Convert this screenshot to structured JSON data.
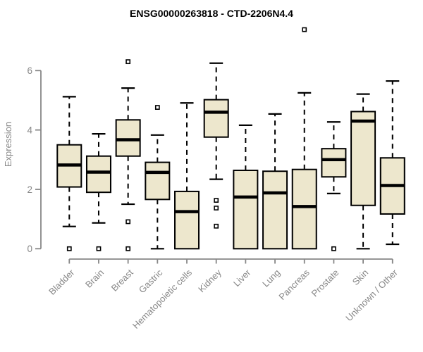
{
  "title": "ENSG00000263818 - CTD-2206N4.4",
  "chart_data": {
    "type": "boxplot",
    "title": "ENSG00000263818 - CTD-2206N4.4",
    "xlabel": "",
    "ylabel": "Expression",
    "ylim": [
      0,
      6.3
    ],
    "y_ticks": [
      0,
      2,
      4,
      6
    ],
    "grid": "off",
    "legend": "none",
    "categories": [
      "Bladder",
      "Brain",
      "Breast",
      "Gastric",
      "Hematopoietic cells",
      "Kidney",
      "Liver",
      "Lung",
      "Pancreas",
      "Prostate",
      "Skin",
      "Unknown / Other"
    ],
    "series": [
      {
        "label": "Bladder",
        "whislo": 0.75,
        "q1": 2.08,
        "med": 2.82,
        "q3": 3.5,
        "whishi": 5.12,
        "outliers": [
          0
        ]
      },
      {
        "label": "Brain",
        "whislo": 0.87,
        "q1": 1.9,
        "med": 2.58,
        "q3": 3.12,
        "whishi": 3.87,
        "outliers": [
          0
        ]
      },
      {
        "label": "Breast",
        "whislo": 1.5,
        "q1": 3.12,
        "med": 3.67,
        "q3": 4.34,
        "whishi": 5.41,
        "outliers": [
          6.3,
          0.91,
          0
        ]
      },
      {
        "label": "Gastric",
        "whislo": 0.0,
        "q1": 1.66,
        "med": 2.57,
        "q3": 2.91,
        "whishi": 3.83,
        "outliers": [
          4.76
        ]
      },
      {
        "label": "Hematopoietic cells",
        "whislo": 0.0,
        "q1": 0.0,
        "med": 1.25,
        "q3": 1.93,
        "whishi": 4.91,
        "outliers": []
      },
      {
        "label": "Kidney",
        "whislo": 2.34,
        "q1": 3.76,
        "med": 4.6,
        "q3": 5.02,
        "whishi": 6.25,
        "outliers": [
          1.63,
          1.37,
          0.76
        ]
      },
      {
        "label": "Liver",
        "whislo": 0.0,
        "q1": 0.0,
        "med": 1.74,
        "q3": 2.64,
        "whishi": 4.16,
        "outliers": []
      },
      {
        "label": "Lung",
        "whislo": 0.0,
        "q1": 0.0,
        "med": 1.88,
        "q3": 2.61,
        "whishi": 4.54,
        "outliers": []
      },
      {
        "label": "Pancreas",
        "whislo": 0.0,
        "q1": 0.0,
        "med": 1.42,
        "q3": 2.67,
        "whishi": 5.25,
        "outliers": [
          7.38
        ]
      },
      {
        "label": "Prostate",
        "whislo": 1.86,
        "q1": 2.42,
        "med": 3.0,
        "q3": 3.37,
        "whishi": 4.27,
        "outliers": [
          0
        ]
      },
      {
        "label": "Skin",
        "whislo": 0.0,
        "q1": 1.46,
        "med": 4.3,
        "q3": 4.62,
        "whishi": 5.21,
        "outliers": []
      },
      {
        "label": "Unknown / Other",
        "whislo": 0.15,
        "q1": 1.17,
        "med": 2.13,
        "q3": 3.06,
        "whishi": 5.65,
        "outliers": []
      }
    ],
    "colors": {
      "box_fill": "#EDE7CD",
      "box_border": "#000000",
      "median": "#000000",
      "whisker": "#000000",
      "outlier": "#000000",
      "axis": "#878787",
      "axis_text": "#878787",
      "title": "#000000"
    }
  }
}
